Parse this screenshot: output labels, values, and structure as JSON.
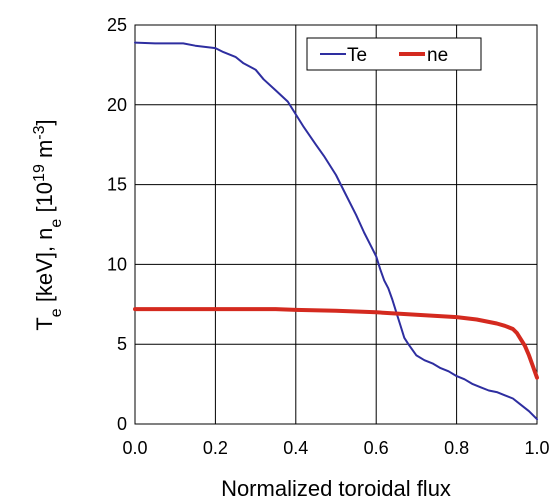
{
  "chart_data": {
    "type": "line",
    "xlabel": "Normalized toroidal flux",
    "ylabel": {
      "t_base": "T",
      "t_sub": "e",
      "unit1": " [keV],  ",
      "n_base": "n",
      "n_sub": "e",
      "unit2_pre": " [10",
      "unit2_exp1": "19",
      "unit2_mid": " m",
      "unit2_exp2": "-3",
      "unit2_post": "]"
    },
    "xlim": [
      0,
      1
    ],
    "ylim": [
      0,
      25
    ],
    "xticks": [
      "0.0",
      "0.2",
      "0.4",
      "0.6",
      "0.8",
      "1.0"
    ],
    "yticks": [
      "0",
      "5",
      "10",
      "15",
      "20",
      "25"
    ],
    "grid": true,
    "legend_position": "top-right",
    "series": [
      {
        "name": "Te",
        "color": "#2e2ea0",
        "x": [
          0.0,
          0.05,
          0.1,
          0.12,
          0.15,
          0.2,
          0.22,
          0.25,
          0.27,
          0.3,
          0.32,
          0.35,
          0.38,
          0.4,
          0.42,
          0.45,
          0.47,
          0.5,
          0.52,
          0.55,
          0.57,
          0.59,
          0.6,
          0.61,
          0.62,
          0.63,
          0.64,
          0.65,
          0.66,
          0.67,
          0.68,
          0.7,
          0.72,
          0.74,
          0.76,
          0.78,
          0.8,
          0.82,
          0.84,
          0.86,
          0.88,
          0.9,
          0.92,
          0.94,
          0.96,
          0.98,
          1.0
        ],
        "y": [
          23.9,
          23.85,
          23.85,
          23.85,
          23.7,
          23.55,
          23.3,
          23.0,
          22.6,
          22.2,
          21.6,
          20.9,
          20.2,
          19.4,
          18.6,
          17.5,
          16.8,
          15.6,
          14.6,
          13.1,
          12.0,
          11.0,
          10.5,
          9.7,
          9.0,
          8.5,
          7.8,
          7.0,
          6.2,
          5.4,
          5.0,
          4.3,
          4.0,
          3.8,
          3.5,
          3.3,
          3.0,
          2.8,
          2.5,
          2.3,
          2.1,
          2.0,
          1.8,
          1.6,
          1.2,
          0.8,
          0.3
        ]
      },
      {
        "name": "ne",
        "color": "#d42a1f",
        "x": [
          0.0,
          0.1,
          0.2,
          0.3,
          0.35,
          0.4,
          0.5,
          0.6,
          0.7,
          0.8,
          0.85,
          0.9,
          0.92,
          0.94,
          0.95,
          0.96,
          0.97,
          0.98,
          0.99,
          1.0
        ],
        "y": [
          7.2,
          7.2,
          7.2,
          7.2,
          7.2,
          7.15,
          7.1,
          7.0,
          6.85,
          6.7,
          6.55,
          6.3,
          6.15,
          5.95,
          5.7,
          5.3,
          4.9,
          4.3,
          3.6,
          2.9
        ]
      }
    ]
  }
}
